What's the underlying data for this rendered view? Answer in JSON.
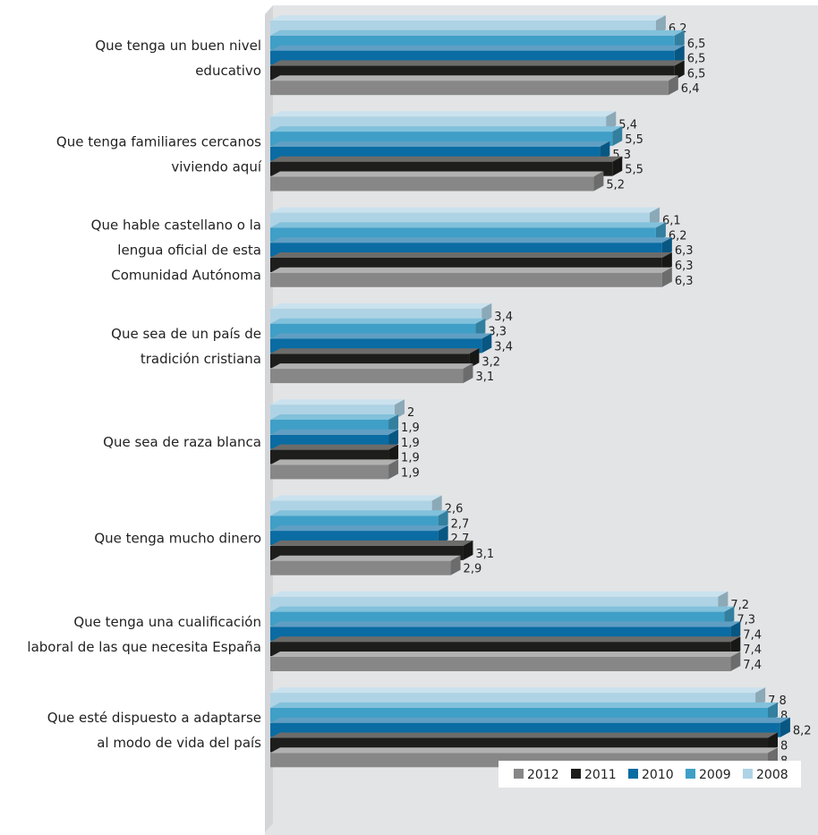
{
  "chart_data": {
    "type": "bar",
    "orientation": "horizontal",
    "style": "3d",
    "categories": [
      [
        "Que tenga un buen nivel",
        "educativo"
      ],
      [
        "Que tenga familiares cercanos",
        "viviendo aquí"
      ],
      [
        "Que hable castellano o la",
        "lengua oficial de esta",
        "Comunidad Autónoma"
      ],
      [
        "Que sea de un país de",
        "tradición cristiana"
      ],
      [
        "Que sea de raza blanca"
      ],
      [
        "Que tenga mucho dinero"
      ],
      [
        "Que tenga una cualificación",
        "laboral de las que necesita España"
      ],
      [
        "Que esté dispuesto a adaptarse",
        "al modo de vida del país"
      ]
    ],
    "series": [
      {
        "name": "2008",
        "color": "#aed3e5",
        "values": [
          6.2,
          5.4,
          6.1,
          3.4,
          2,
          2.6,
          7.2,
          7.8
        ],
        "labels": [
          "6,2",
          "5,4",
          "6,1",
          "3,4",
          "2",
          "2,6",
          "7,2",
          "7,8"
        ]
      },
      {
        "name": "2009",
        "color": "#3f9fc7",
        "values": [
          6.5,
          5.5,
          6.2,
          3.3,
          1.9,
          2.7,
          7.3,
          8
        ],
        "labels": [
          "6,5",
          "5,5",
          "6,2",
          "3,3",
          "1,9",
          "2,7",
          "7,3",
          "8"
        ]
      },
      {
        "name": "2010",
        "color": "#0a6ca3",
        "values": [
          6.5,
          5.3,
          6.3,
          3.4,
          1.9,
          2.7,
          7.4,
          8.2
        ],
        "labels": [
          "6,5",
          "5,3",
          "6,3",
          "3,4",
          "1,9",
          "2,7",
          "7,4",
          "8,2"
        ]
      },
      {
        "name": "2011",
        "color": "#1d1d1b",
        "values": [
          6.5,
          5.5,
          6.3,
          3.2,
          1.9,
          3.1,
          7.4,
          8
        ],
        "labels": [
          "6,5",
          "5,5",
          "6,3",
          "3,2",
          "1,9",
          "3,1",
          "7,4",
          "8"
        ]
      },
      {
        "name": "2012",
        "color": "#878787",
        "values": [
          6.4,
          5.2,
          6.3,
          3.1,
          1.9,
          2.9,
          7.4,
          8
        ],
        "labels": [
          "6,4",
          "5,2",
          "6,3",
          "3,1",
          "1,9",
          "2,9",
          "7,4",
          "8"
        ]
      }
    ],
    "legend": {
      "placement": "bottom-right",
      "order": [
        "2012",
        "2011",
        "2010",
        "2009",
        "2008"
      ]
    },
    "title": "",
    "xlabel": "",
    "ylabel": "",
    "xlim": [
      0,
      8.5
    ],
    "grid": false,
    "background_color": "#e3e4e6"
  }
}
